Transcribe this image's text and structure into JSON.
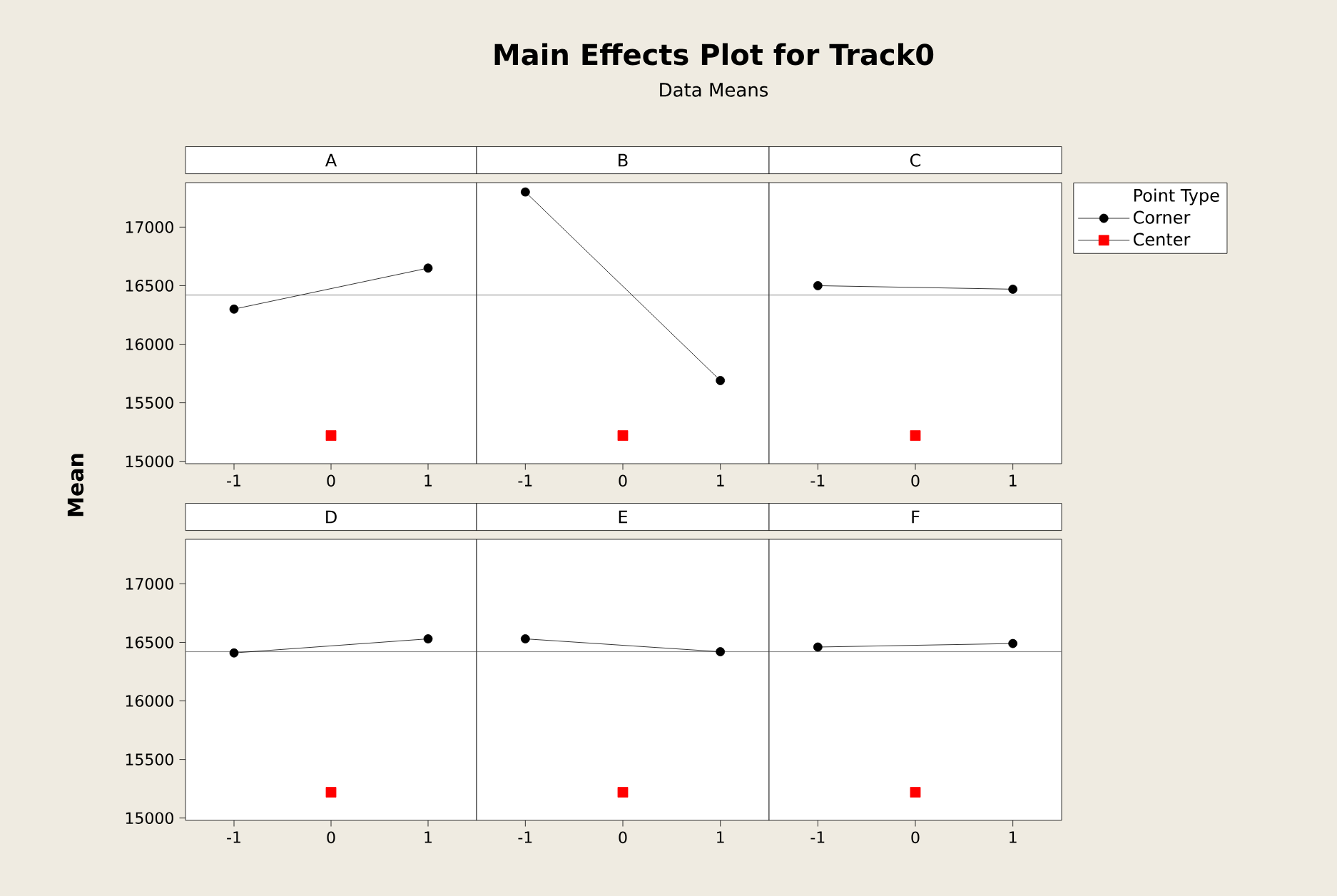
{
  "chart_data": [
    {
      "type": "other",
      "title": "Main Effects Plot for Track0",
      "subtitle": "Data Means",
      "ylabel": "Mean"
    },
    {
      "type": "line",
      "title": "A",
      "xlim": [
        -1.5,
        1.5
      ],
      "xticks": [
        -1,
        0,
        1
      ],
      "ylim": [
        14980,
        17380
      ],
      "yticks": [
        15000,
        15500,
        16000,
        16500,
        17000
      ],
      "ref_lines": [
        {
          "axis": "y",
          "value": 16420,
          "color": "#606060"
        }
      ],
      "series": [
        {
          "type": "line",
          "marker": "circle",
          "color": "#000000",
          "x": [
            -1,
            1
          ],
          "values": [
            16300,
            16650
          ]
        },
        {
          "type": "scatter",
          "marker": "square",
          "color": "#ff0000",
          "x": [
            0
          ],
          "values": [
            15220
          ]
        }
      ]
    },
    {
      "type": "line",
      "title": "B",
      "xlim": [
        -1.5,
        1.5
      ],
      "xticks": [
        -1,
        0,
        1
      ],
      "ylim": [
        14980,
        17380
      ],
      "yticks": [
        15000,
        15500,
        16000,
        16500,
        17000
      ],
      "tick_labels": "x",
      "ref_lines": [
        {
          "axis": "y",
          "value": 16420,
          "color": "#606060"
        }
      ],
      "series": [
        {
          "type": "line",
          "marker": "circle",
          "color": "#000000",
          "x": [
            -1,
            1
          ],
          "values": [
            17300,
            15690
          ]
        },
        {
          "type": "scatter",
          "marker": "square",
          "color": "#ff0000",
          "x": [
            0
          ],
          "values": [
            15220
          ]
        }
      ]
    },
    {
      "type": "line",
      "title": "C",
      "xlim": [
        -1.5,
        1.5
      ],
      "xticks": [
        -1,
        0,
        1
      ],
      "ylim": [
        14980,
        17380
      ],
      "yticks": [
        15000,
        15500,
        16000,
        16500,
        17000
      ],
      "tick_labels": "x",
      "legend": "right",
      "legend_title": "Point Type",
      "ref_lines": [
        {
          "axis": "y",
          "value": 16420,
          "color": "#606060"
        }
      ],
      "series": [
        {
          "name": "Corner",
          "type": "line",
          "marker": "circle",
          "color": "#000000",
          "x": [
            -1,
            1
          ],
          "values": [
            16500,
            16470
          ]
        },
        {
          "name": "Center",
          "type": "scatter",
          "marker": "square",
          "color": "#ff0000",
          "x": [
            0
          ],
          "values": [
            15220
          ]
        }
      ]
    },
    {
      "type": "line",
      "title": "D",
      "xlim": [
        -1.5,
        1.5
      ],
      "xticks": [
        -1,
        0,
        1
      ],
      "ylim": [
        14980,
        17380
      ],
      "yticks": [
        15000,
        15500,
        16000,
        16500,
        17000
      ],
      "ref_lines": [
        {
          "axis": "y",
          "value": 16420,
          "color": "#606060"
        }
      ],
      "series": [
        {
          "type": "line",
          "marker": "circle",
          "color": "#000000",
          "x": [
            -1,
            1
          ],
          "values": [
            16410,
            16530
          ]
        },
        {
          "type": "scatter",
          "marker": "square",
          "color": "#ff0000",
          "x": [
            0
          ],
          "values": [
            15220
          ]
        }
      ]
    },
    {
      "type": "line",
      "title": "E",
      "xlim": [
        -1.5,
        1.5
      ],
      "xticks": [
        -1,
        0,
        1
      ],
      "ylim": [
        14980,
        17380
      ],
      "yticks": [
        15000,
        15500,
        16000,
        16500,
        17000
      ],
      "tick_labels": "x",
      "ref_lines": [
        {
          "axis": "y",
          "value": 16420,
          "color": "#606060"
        }
      ],
      "series": [
        {
          "type": "line",
          "marker": "circle",
          "color": "#000000",
          "x": [
            -1,
            1
          ],
          "values": [
            16530,
            16420
          ]
        },
        {
          "type": "scatter",
          "marker": "square",
          "color": "#ff0000",
          "x": [
            0
          ],
          "values": [
            15220
          ]
        }
      ]
    },
    {
      "type": "line",
      "title": "F",
      "xlim": [
        -1.5,
        1.5
      ],
      "xticks": [
        -1,
        0,
        1
      ],
      "ylim": [
        14980,
        17380
      ],
      "yticks": [
        15000,
        15500,
        16000,
        16500,
        17000
      ],
      "tick_labels": "x",
      "ref_lines": [
        {
          "axis": "y",
          "value": 16420,
          "color": "#606060"
        }
      ],
      "series": [
        {
          "type": "line",
          "marker": "circle",
          "color": "#000000",
          "x": [
            -1,
            1
          ],
          "values": [
            16460,
            16490
          ]
        },
        {
          "type": "scatter",
          "marker": "square",
          "color": "#ff0000",
          "x": [
            0
          ],
          "values": [
            15220
          ]
        }
      ]
    }
  ]
}
